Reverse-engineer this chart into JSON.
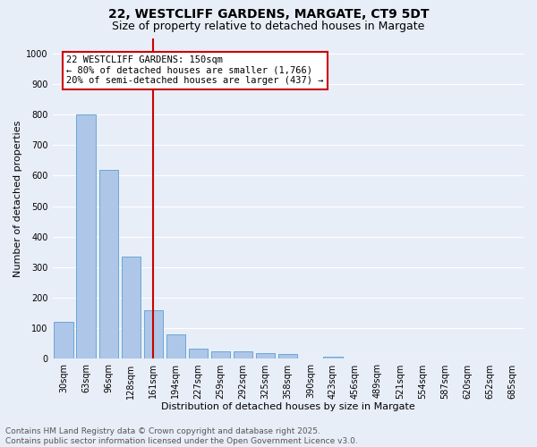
{
  "title1": "22, WESTCLIFF GARDENS, MARGATE, CT9 5DT",
  "title2": "Size of property relative to detached houses in Margate",
  "xlabel": "Distribution of detached houses by size in Margate",
  "ylabel": "Number of detached properties",
  "categories": [
    "30sqm",
    "63sqm",
    "96sqm",
    "128sqm",
    "161sqm",
    "194sqm",
    "227sqm",
    "259sqm",
    "292sqm",
    "325sqm",
    "358sqm",
    "390sqm",
    "423sqm",
    "456sqm",
    "489sqm",
    "521sqm",
    "554sqm",
    "587sqm",
    "620sqm",
    "652sqm",
    "685sqm"
  ],
  "values": [
    120,
    800,
    620,
    335,
    160,
    80,
    35,
    25,
    25,
    18,
    15,
    0,
    8,
    0,
    0,
    0,
    0,
    0,
    0,
    0,
    0
  ],
  "bar_color": "#aec6e8",
  "bar_edge_color": "#5a9fd4",
  "vline_x": 4,
  "vline_color": "#cc0000",
  "annotation_box_text": "22 WESTCLIFF GARDENS: 150sqm\n← 80% of detached houses are smaller (1,766)\n20% of semi-detached houses are larger (437) →",
  "annotation_box_color": "#cc0000",
  "ylim": [
    0,
    1050
  ],
  "yticks": [
    0,
    100,
    200,
    300,
    400,
    500,
    600,
    700,
    800,
    900,
    1000
  ],
  "bg_color": "#e8eef8",
  "grid_color": "#ffffff",
  "footer_text": "Contains HM Land Registry data © Crown copyright and database right 2025.\nContains public sector information licensed under the Open Government Licence v3.0.",
  "title_fontsize": 10,
  "subtitle_fontsize": 9,
  "axis_fontsize": 8,
  "tick_fontsize": 7,
  "footer_fontsize": 6.5,
  "annot_fontsize": 7.5
}
